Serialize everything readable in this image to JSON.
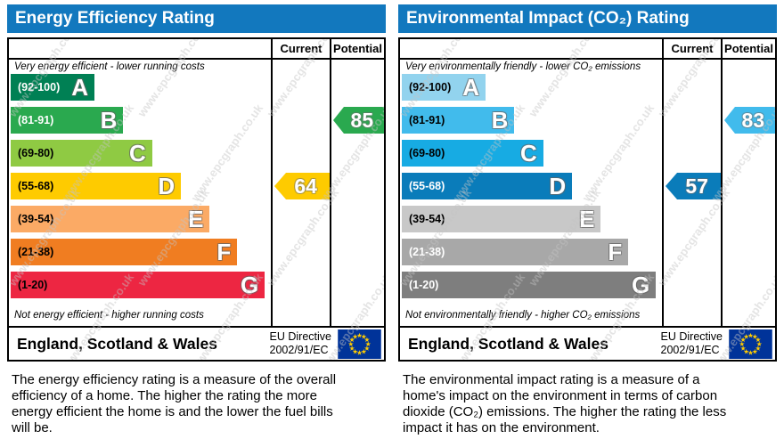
{
  "watermark": "www.epcgraph.co.uk",
  "panels": [
    {
      "title": "Energy Efficiency Rating",
      "columns": [
        "Current",
        "Potential"
      ],
      "top_note": "Very energy efficient - lower running costs",
      "bottom_note": "Not energy efficient - higher running costs",
      "bands": [
        {
          "letter": "A",
          "range": "(92-100)",
          "color": "#008054",
          "text": "#ffffff",
          "width_pct": 32
        },
        {
          "letter": "B",
          "range": "(81-91)",
          "color": "#2aa94f",
          "text": "#ffffff",
          "width_pct": 43
        },
        {
          "letter": "C",
          "range": "(69-80)",
          "color": "#8fca43",
          "text": "#000000",
          "width_pct": 54
        },
        {
          "letter": "D",
          "range": "(55-68)",
          "color": "#fecb00",
          "text": "#000000",
          "width_pct": 65
        },
        {
          "letter": "E",
          "range": "(39-54)",
          "color": "#fbaa65",
          "text": "#000000",
          "width_pct": 76
        },
        {
          "letter": "F",
          "range": "(21-38)",
          "color": "#f07d21",
          "text": "#000000",
          "width_pct": 86.5
        },
        {
          "letter": "G",
          "range": "(1-20)",
          "color": "#ed2642",
          "text": "#000000",
          "width_pct": 97
        }
      ],
      "current": {
        "value": "64",
        "band": "D",
        "color": "#fecb00"
      },
      "potential": {
        "value": "85",
        "band": "B",
        "color": "#2aa94f"
      },
      "footer": {
        "region": "England, Scotland & Wales",
        "directive_line1": "EU Directive",
        "directive_line2": "2002/91/EC"
      },
      "description": "The energy efficiency rating is a measure of the overall efficiency of a home. The higher the rating the more energy efficient the home is and the lower the fuel bills will be."
    },
    {
      "title": "Environmental Impact (CO₂) Rating",
      "columns": [
        "Current",
        "Potential"
      ],
      "top_note": "Very environmentally friendly - lower CO₂ emissions",
      "bottom_note": "Not environmentally friendly - higher CO₂ emissions",
      "bands": [
        {
          "letter": "A",
          "range": "(92-100)",
          "color": "#92d3ee",
          "text": "#000000",
          "width_pct": 32
        },
        {
          "letter": "B",
          "range": "(81-91)",
          "color": "#41bbec",
          "text": "#000000",
          "width_pct": 43
        },
        {
          "letter": "C",
          "range": "(69-80)",
          "color": "#17abe3",
          "text": "#000000",
          "width_pct": 54
        },
        {
          "letter": "D",
          "range": "(55-68)",
          "color": "#0a7cba",
          "text": "#ffffff",
          "width_pct": 65
        },
        {
          "letter": "E",
          "range": "(39-54)",
          "color": "#c8c8c8",
          "text": "#000000",
          "width_pct": 76
        },
        {
          "letter": "F",
          "range": "(21-38)",
          "color": "#a8a8a8",
          "text": "#ffffff",
          "width_pct": 86.5
        },
        {
          "letter": "G",
          "range": "(1-20)",
          "color": "#7e7e7e",
          "text": "#ffffff",
          "width_pct": 97
        }
      ],
      "current": {
        "value": "57",
        "band": "D",
        "color": "#0a7cba"
      },
      "potential": {
        "value": "83",
        "band": "B",
        "color": "#41bbec"
      },
      "footer": {
        "region": "England, Scotland & Wales",
        "directive_line1": "EU Directive",
        "directive_line2": "2002/91/EC"
      },
      "description": "The environmental impact rating is a measure of a home's impact on the environment in terms of carbon dioxide (CO₂) emissions. The higher the rating the less impact it has on the environment."
    }
  ],
  "chart_data": [
    {
      "type": "bar",
      "title": "Energy Efficiency Rating",
      "categories": [
        "A (92-100)",
        "B (81-91)",
        "C (69-80)",
        "D (55-68)",
        "E (39-54)",
        "F (21-38)",
        "G (1-20)"
      ],
      "band_colors": [
        "#008054",
        "#2aa94f",
        "#8fca43",
        "#fecb00",
        "#fbaa65",
        "#f07d21",
        "#ed2642"
      ],
      "series": [
        {
          "name": "Current",
          "value": 64,
          "band": "D"
        },
        {
          "name": "Potential",
          "value": 85,
          "band": "B"
        }
      ],
      "scale": [
        1,
        100
      ],
      "top_annotation": "Very energy efficient - lower running costs",
      "bottom_annotation": "Not energy efficient - higher running costs",
      "footer": "England, Scotland & Wales — EU Directive 2002/91/EC"
    },
    {
      "type": "bar",
      "title": "Environmental Impact (CO₂) Rating",
      "categories": [
        "A (92-100)",
        "B (81-91)",
        "C (69-80)",
        "D (55-68)",
        "E (39-54)",
        "F (21-38)",
        "G (1-20)"
      ],
      "band_colors": [
        "#92d3ee",
        "#41bbec",
        "#17abe3",
        "#0a7cba",
        "#c8c8c8",
        "#a8a8a8",
        "#7e7e7e"
      ],
      "series": [
        {
          "name": "Current",
          "value": 57,
          "band": "D"
        },
        {
          "name": "Potential",
          "value": 83,
          "band": "B"
        }
      ],
      "scale": [
        1,
        100
      ],
      "top_annotation": "Very environmentally friendly - lower CO₂ emissions",
      "bottom_annotation": "Not environmentally friendly - higher CO₂ emissions",
      "footer": "England, Scotland & Wales — EU Directive 2002/91/EC"
    }
  ]
}
